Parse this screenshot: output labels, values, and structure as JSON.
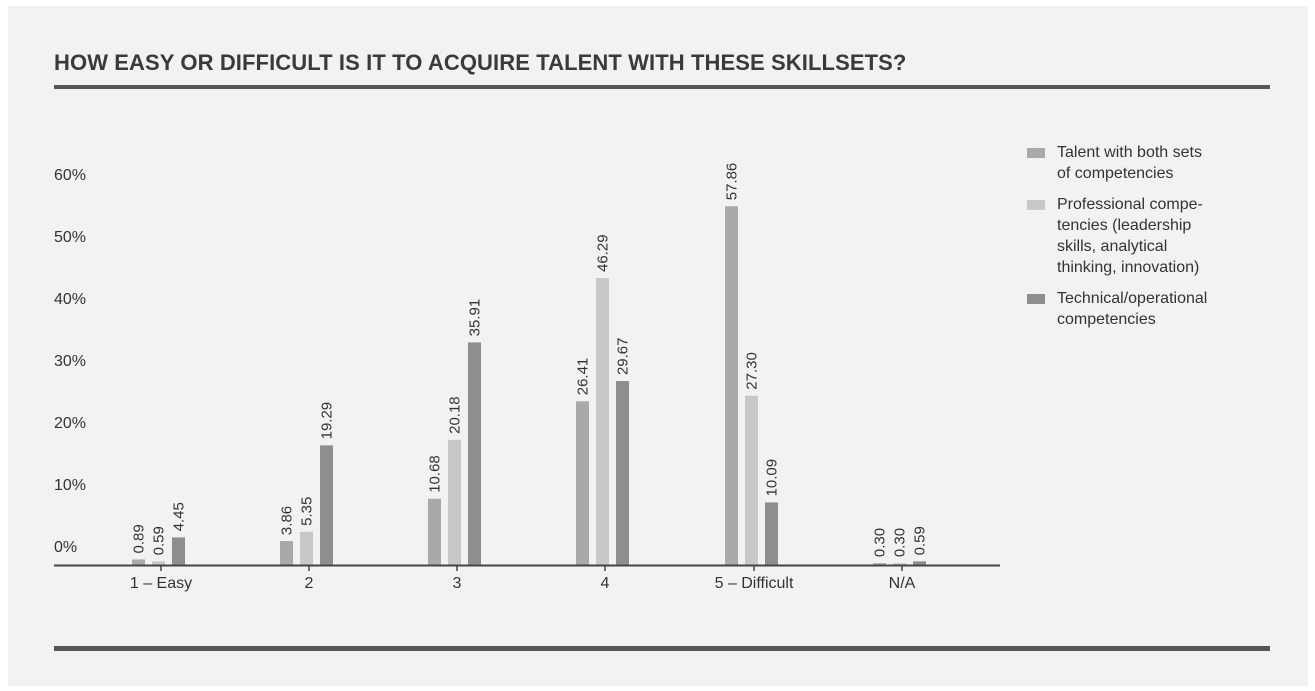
{
  "title": "HOW EASY OR DIFFICULT IS IT TO ACQUIRE TALENT WITH THESE SKILLSETS?",
  "colors": {
    "background": "#f2f2f2",
    "rule": "#555555",
    "text": "#333333"
  },
  "chart_data": {
    "type": "bar",
    "title": "HOW EASY OR DIFFICULT IS IT TO ACQUIRE TALENT WITH THESE SKILLSETS?",
    "categories": [
      "1 – Easy",
      "2",
      "3",
      "4",
      "5 – Difficult",
      "N/A"
    ],
    "y_ticks": [
      "0%",
      "10%",
      "20%",
      "30%",
      "40%",
      "50%",
      "60%"
    ],
    "ylim": [
      0,
      60
    ],
    "grid": false,
    "legend_position": "right",
    "series": [
      {
        "name": "Talent with both sets\nof competencies",
        "color": "#a9a9a9",
        "values": [
          0.89,
          3.86,
          10.68,
          26.41,
          57.86,
          0.3
        ],
        "labels": [
          "0.89",
          "3.86",
          "10.68",
          "26.41",
          "57.86",
          "0.30"
        ]
      },
      {
        "name": "Professional compe-\ntencies (leadership\nskills, analytical\nthinking, innovation)",
        "color": "#c8c8c8",
        "values": [
          0.59,
          5.35,
          20.18,
          46.29,
          27.3,
          0.3
        ],
        "labels": [
          "0.59",
          "5.35",
          "20.18",
          "46.29",
          "27.30",
          "0.30"
        ]
      },
      {
        "name": "Technical/operational\ncompetencies",
        "color": "#8e8e8e",
        "values": [
          4.45,
          19.29,
          35.91,
          29.67,
          10.09,
          0.59
        ],
        "labels": [
          "4.45",
          "19.29",
          "35.91",
          "29.67",
          "10.09",
          "0.59"
        ]
      }
    ]
  }
}
